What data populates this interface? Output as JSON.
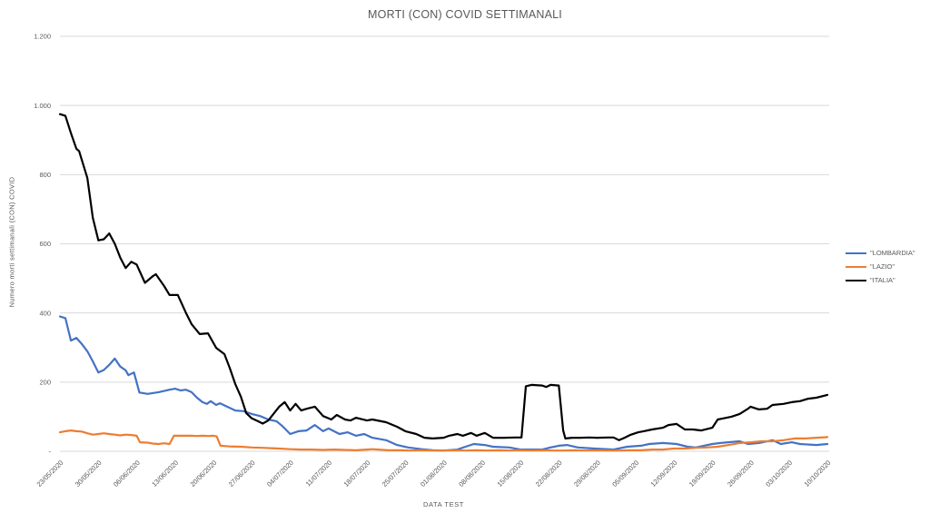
{
  "chart_data": {
    "type": "line",
    "title": "MORTI (CON) COVID SETTIMANALI",
    "xlabel": "DATA TEST",
    "ylabel": "Numero morti settimanali (CON) COVID",
    "grid": "horizontal-only",
    "legend_position": "right",
    "x_axis": {
      "start_date": "23/05/2020",
      "end_date": "10/10/2020",
      "unit": "days since 23/05/2020",
      "domain_days": [
        0,
        140
      ],
      "tick_days": [
        0,
        7,
        14,
        21,
        28,
        35,
        42,
        49,
        56,
        63,
        70,
        77,
        84,
        91,
        98,
        105,
        112,
        119,
        126,
        133,
        140
      ],
      "tick_labels": [
        "23/05/2020",
        "30/05/2020",
        "06/06/2020",
        "13/06/2020",
        "20/06/2020",
        "27/06/2020",
        "04/07/2020",
        "11/07/2020",
        "18/07/2020",
        "25/07/2020",
        "01/08/2020",
        "08/08/2020",
        "15/08/2020",
        "22/08/2020",
        "29/08/2020",
        "05/09/2020",
        "12/09/2020",
        "19/09/2020",
        "26/09/2020",
        "03/10/2020",
        "10/10/2020"
      ]
    },
    "y_axis": {
      "ylim": [
        0,
        1200
      ],
      "ticks": [
        {
          "value": 1200,
          "label": "1.200"
        },
        {
          "value": 1000,
          "label": "1.000"
        },
        {
          "value": 800,
          "label": "800"
        },
        {
          "value": 600,
          "label": "600"
        },
        {
          "value": 400,
          "label": "400"
        },
        {
          "value": 200,
          "label": "200"
        },
        {
          "value": 0,
          "label": "-"
        }
      ]
    },
    "series": [
      {
        "name": "\"LOMBARDIA\"",
        "id": "lombardia",
        "color": "#4472C4",
        "points": [
          [
            0,
            390
          ],
          [
            1,
            385
          ],
          [
            2,
            320
          ],
          [
            3,
            328
          ],
          [
            4,
            310
          ],
          [
            5,
            289
          ],
          [
            6,
            260
          ],
          [
            7,
            228
          ],
          [
            8,
            235
          ],
          [
            9,
            250
          ],
          [
            10,
            268
          ],
          [
            11,
            245
          ],
          [
            12,
            234
          ],
          [
            12.5,
            220
          ],
          [
            13.5,
            228
          ],
          [
            14.5,
            170
          ],
          [
            16,
            166
          ],
          [
            18,
            171
          ],
          [
            20,
            178
          ],
          [
            21,
            181
          ],
          [
            22,
            176
          ],
          [
            23,
            178
          ],
          [
            24,
            171
          ],
          [
            25,
            155
          ],
          [
            26,
            142
          ],
          [
            26.8,
            137
          ],
          [
            27.5,
            145
          ],
          [
            28.5,
            134
          ],
          [
            29.2,
            139
          ],
          [
            30.5,
            129
          ],
          [
            32,
            118
          ],
          [
            33.5,
            116
          ],
          [
            35,
            108
          ],
          [
            36.5,
            102
          ],
          [
            38,
            92
          ],
          [
            39.5,
            87
          ],
          [
            40.5,
            74
          ],
          [
            41,
            66
          ],
          [
            42,
            50
          ],
          [
            43.5,
            58
          ],
          [
            45,
            60
          ],
          [
            46.5,
            76
          ],
          [
            48,
            58
          ],
          [
            49,
            66
          ],
          [
            51,
            50
          ],
          [
            52.5,
            55
          ],
          [
            54,
            45
          ],
          [
            55.5,
            50
          ],
          [
            57,
            39
          ],
          [
            59.5,
            32
          ],
          [
            61.5,
            18
          ],
          [
            63.5,
            11
          ],
          [
            66,
            6
          ],
          [
            68,
            3
          ],
          [
            70,
            2
          ],
          [
            72.5,
            5
          ],
          [
            74,
            13
          ],
          [
            75.5,
            21
          ],
          [
            77.5,
            18
          ],
          [
            79,
            13
          ],
          [
            82,
            11
          ],
          [
            84,
            5
          ],
          [
            86,
            5
          ],
          [
            88,
            5
          ],
          [
            89.5,
            11
          ],
          [
            91,
            16
          ],
          [
            92.5,
            18
          ],
          [
            94.5,
            11
          ],
          [
            97.5,
            8
          ],
          [
            101,
            5
          ],
          [
            103.5,
            13
          ],
          [
            106,
            16
          ],
          [
            107.5,
            21
          ],
          [
            110,
            24
          ],
          [
            112.5,
            21
          ],
          [
            114.5,
            13
          ],
          [
            116,
            11
          ],
          [
            119,
            21
          ],
          [
            120.5,
            24
          ],
          [
            124,
            29
          ],
          [
            125.5,
            21
          ],
          [
            127.5,
            24
          ],
          [
            130,
            32
          ],
          [
            131.5,
            21
          ],
          [
            133.5,
            26
          ],
          [
            135,
            21
          ],
          [
            138,
            18
          ],
          [
            140,
            21
          ]
        ]
      },
      {
        "name": "\"LAZIO\"",
        "id": "lazio",
        "color": "#ED7D31",
        "points": [
          [
            0,
            55
          ],
          [
            1,
            58
          ],
          [
            2,
            60
          ],
          [
            3,
            58
          ],
          [
            4,
            57
          ],
          [
            5,
            52
          ],
          [
            6,
            48
          ],
          [
            7,
            50
          ],
          [
            8,
            52
          ],
          [
            9,
            50
          ],
          [
            10,
            48
          ],
          [
            11,
            46
          ],
          [
            12,
            48
          ],
          [
            13,
            47
          ],
          [
            14,
            45
          ],
          [
            14.6,
            26
          ],
          [
            16,
            25
          ],
          [
            17,
            22
          ],
          [
            18,
            21
          ],
          [
            19,
            23
          ],
          [
            20,
            21
          ],
          [
            20.8,
            45
          ],
          [
            22,
            45
          ],
          [
            24,
            45
          ],
          [
            25,
            44
          ],
          [
            26,
            45
          ],
          [
            27,
            44
          ],
          [
            28,
            45
          ],
          [
            28.6,
            43
          ],
          [
            29.3,
            16
          ],
          [
            31,
            14
          ],
          [
            33,
            13
          ],
          [
            35,
            11
          ],
          [
            37,
            10
          ],
          [
            38.5,
            9
          ],
          [
            40,
            8
          ],
          [
            42,
            6
          ],
          [
            44,
            5
          ],
          [
            46,
            5
          ],
          [
            48,
            4
          ],
          [
            50,
            5
          ],
          [
            52,
            4
          ],
          [
            54,
            3
          ],
          [
            56,
            5
          ],
          [
            57,
            6
          ],
          [
            58,
            5
          ],
          [
            60,
            3
          ],
          [
            62,
            3
          ],
          [
            64,
            2
          ],
          [
            66,
            3
          ],
          [
            68,
            2
          ],
          [
            70,
            2
          ],
          [
            72,
            3
          ],
          [
            74,
            2
          ],
          [
            76,
            3
          ],
          [
            78,
            2
          ],
          [
            80,
            3
          ],
          [
            82,
            2
          ],
          [
            84,
            3
          ],
          [
            86,
            2
          ],
          [
            88,
            3
          ],
          [
            90,
            2
          ],
          [
            92,
            2
          ],
          [
            94,
            3
          ],
          [
            96,
            2
          ],
          [
            98,
            3
          ],
          [
            100,
            2
          ],
          [
            102,
            2
          ],
          [
            104,
            3
          ],
          [
            106,
            3
          ],
          [
            108,
            5
          ],
          [
            110,
            5
          ],
          [
            112,
            8
          ],
          [
            114,
            8
          ],
          [
            116,
            10
          ],
          [
            118,
            11
          ],
          [
            120,
            13
          ],
          [
            122,
            18
          ],
          [
            124,
            24
          ],
          [
            126,
            26
          ],
          [
            128,
            29
          ],
          [
            130,
            29
          ],
          [
            132,
            32
          ],
          [
            134,
            37
          ],
          [
            136,
            37
          ],
          [
            138,
            39
          ],
          [
            140,
            41
          ]
        ]
      },
      {
        "name": "\"ITALIA\"",
        "id": "italia",
        "color": "#000000",
        "points": [
          [
            0,
            975
          ],
          [
            1,
            970
          ],
          [
            2,
            920
          ],
          [
            3,
            875
          ],
          [
            3.5,
            868
          ],
          [
            5,
            790
          ],
          [
            6,
            675
          ],
          [
            7,
            610
          ],
          [
            8,
            613
          ],
          [
            9,
            630
          ],
          [
            10,
            600
          ],
          [
            11,
            560
          ],
          [
            12,
            530
          ],
          [
            13,
            548
          ],
          [
            14,
            540
          ],
          [
            15.5,
            487
          ],
          [
            17,
            507
          ],
          [
            17.5,
            512
          ],
          [
            19,
            478
          ],
          [
            20,
            452
          ],
          [
            21.5,
            452
          ],
          [
            23,
            400
          ],
          [
            24,
            368
          ],
          [
            25.5,
            339
          ],
          [
            27,
            341
          ],
          [
            28.5,
            299
          ],
          [
            30,
            281
          ],
          [
            31,
            240
          ],
          [
            32,
            194
          ],
          [
            33,
            158
          ],
          [
            34,
            110
          ],
          [
            35,
            95
          ],
          [
            36,
            88
          ],
          [
            37,
            80
          ],
          [
            38,
            89
          ],
          [
            40,
            129
          ],
          [
            41,
            142
          ],
          [
            42,
            118
          ],
          [
            43,
            137
          ],
          [
            44,
            118
          ],
          [
            45,
            123
          ],
          [
            46.5,
            129
          ],
          [
            48,
            102
          ],
          [
            49.5,
            92
          ],
          [
            50.5,
            105
          ],
          [
            52,
            92
          ],
          [
            53,
            89
          ],
          [
            54,
            97
          ],
          [
            56,
            89
          ],
          [
            57,
            92
          ],
          [
            59.5,
            84
          ],
          [
            61.5,
            71
          ],
          [
            63,
            58
          ],
          [
            65,
            50
          ],
          [
            66.5,
            39
          ],
          [
            68,
            37
          ],
          [
            70,
            39
          ],
          [
            71,
            45
          ],
          [
            72.5,
            50
          ],
          [
            73.5,
            45
          ],
          [
            75,
            53
          ],
          [
            76,
            45
          ],
          [
            77.5,
            53
          ],
          [
            79,
            39
          ],
          [
            81,
            39
          ],
          [
            83,
            40
          ],
          [
            84.2,
            40
          ],
          [
            85,
            188
          ],
          [
            86,
            192
          ],
          [
            88,
            190
          ],
          [
            88.7,
            186
          ],
          [
            89.5,
            192
          ],
          [
            91,
            190
          ],
          [
            91.8,
            60
          ],
          [
            92.2,
            37
          ],
          [
            93.5,
            39
          ],
          [
            95,
            39
          ],
          [
            96.5,
            40
          ],
          [
            98,
            39
          ],
          [
            100,
            40
          ],
          [
            101,
            40
          ],
          [
            102,
            32
          ],
          [
            103,
            39
          ],
          [
            104,
            47
          ],
          [
            105.5,
            55
          ],
          [
            106.5,
            58
          ],
          [
            108,
            63
          ],
          [
            110,
            68
          ],
          [
            111,
            76
          ],
          [
            112.5,
            79
          ],
          [
            114,
            63
          ],
          [
            115.5,
            63
          ],
          [
            117,
            60
          ],
          [
            119,
            68
          ],
          [
            120,
            92
          ],
          [
            121,
            95
          ],
          [
            122.5,
            100
          ],
          [
            124,
            108
          ],
          [
            125.5,
            123
          ],
          [
            126,
            129
          ],
          [
            127.5,
            121
          ],
          [
            129,
            123
          ],
          [
            130,
            134
          ],
          [
            132,
            137
          ],
          [
            133.5,
            142
          ],
          [
            135,
            145
          ],
          [
            136.5,
            152
          ],
          [
            138,
            155
          ],
          [
            140,
            163
          ]
        ]
      }
    ],
    "style": {
      "gridline_color": "#D9D9D9",
      "text_color": "#595959",
      "background": "#FFFFFF",
      "line_width": 2.2
    }
  }
}
